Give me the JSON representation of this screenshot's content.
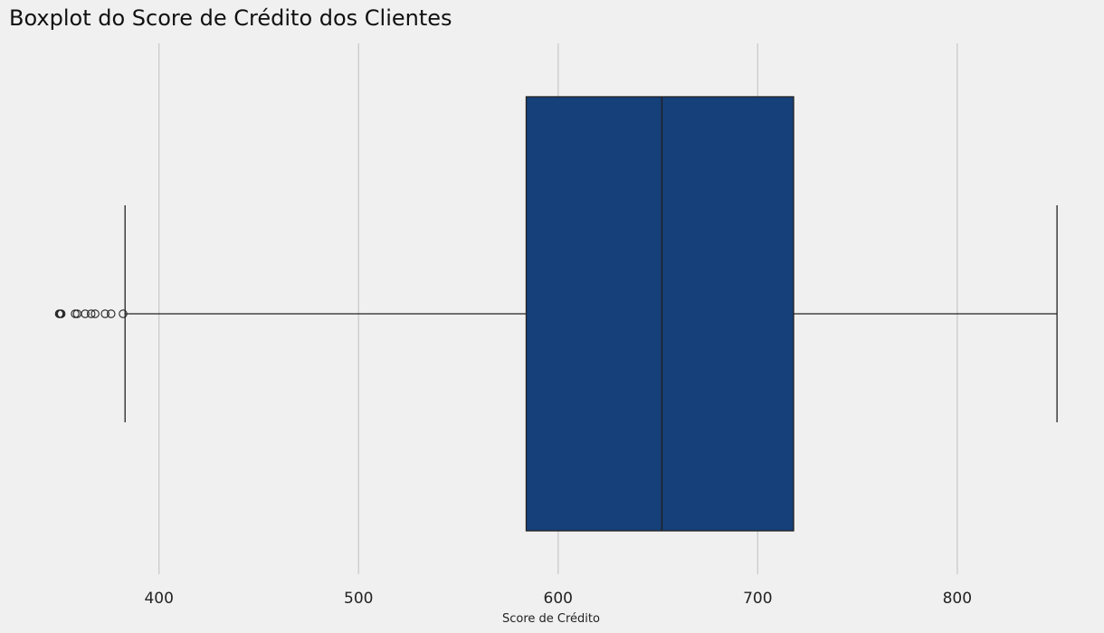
{
  "chart_data": {
    "type": "boxplot",
    "title": "Boxplot do Score de Crédito dos Clientes",
    "xlabel": "Score de Crédito",
    "xlim": [
      343,
      869
    ],
    "xticks": [
      400,
      500,
      600,
      700,
      800
    ],
    "box": {
      "q1": 584,
      "median": 652,
      "q3": 718,
      "whisker_low": 383,
      "whisker_high": 850
    },
    "outliers": [
      350,
      350.5,
      351,
      358,
      359,
      363,
      366,
      368,
      373,
      376,
      382
    ],
    "grid": true,
    "box_color": "#15407A",
    "line_color": "#222222",
    "grid_color": "#cbcbcb",
    "background": "#f0f0f0"
  }
}
